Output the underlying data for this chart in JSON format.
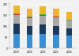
{
  "years": [
    "2019",
    "2020",
    "2021",
    "2022",
    "2023"
  ],
  "segments": {
    "oil": {
      "values": [
        4.8,
        4.4,
        4.6,
        4.45,
        4.2
      ],
      "color": "#3a8fd4"
    },
    "coal": {
      "values": [
        3.2,
        2.8,
        3.1,
        2.9,
        2.3
      ],
      "color": "#1b3a5c"
    },
    "natgas": {
      "values": [
        3.0,
        2.8,
        3.0,
        2.8,
        2.5
      ],
      "color": "#a8a8a8"
    },
    "nuclear": {
      "values": [
        0.3,
        0.28,
        0.28,
        0.2,
        0.04
      ],
      "color": "#c0392b"
    },
    "renewable": {
      "values": [
        0.12,
        0.12,
        0.12,
        0.12,
        0.3
      ],
      "color": "#4cae4c"
    },
    "other": {
      "values": [
        2.7,
        2.55,
        2.65,
        2.55,
        2.65
      ],
      "color": "#f0b429"
    }
  },
  "figsize": [
    1.0,
    0.71
  ],
  "dpi": 100,
  "background_color": "#f2f2f2",
  "plot_bg_color": "#f2f2f2",
  "bar_width": 0.45,
  "ylim": [
    0,
    15.0
  ],
  "xlim": [
    -0.55,
    4.55
  ],
  "ytick_values": [
    0,
    50,
    100,
    150,
    200
  ],
  "ytick_scale": 14.5,
  "ytick_max": 200
}
